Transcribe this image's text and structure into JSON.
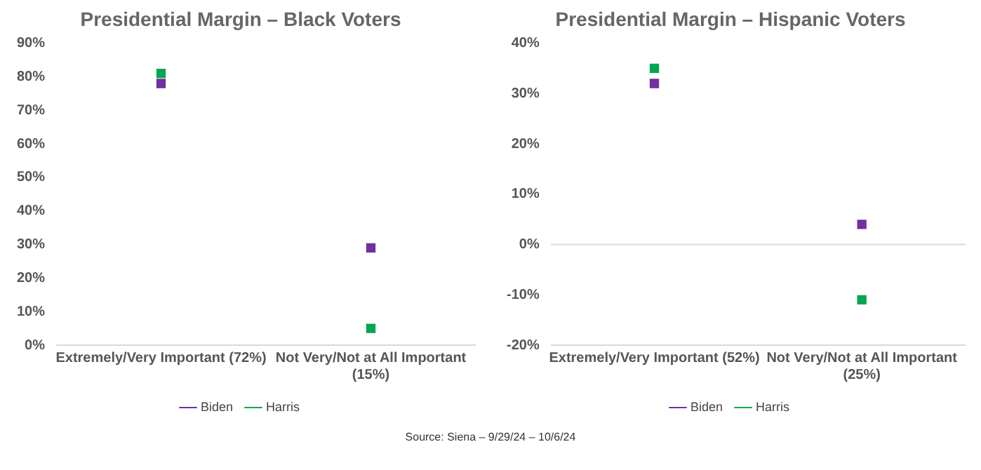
{
  "chart_data": [
    {
      "type": "scatter",
      "title": "Presidential Margin – Black Voters",
      "categories": [
        "Extremely/Very Important (72%)",
        "Not Very/Not at All Important (15%)"
      ],
      "ylim": [
        0,
        90
      ],
      "yticks": [
        {
          "value": 0,
          "label": "0%"
        },
        {
          "value": 10,
          "label": "10%"
        },
        {
          "value": 20,
          "label": "20%"
        },
        {
          "value": 30,
          "label": "30%"
        },
        {
          "value": 40,
          "label": "40%"
        },
        {
          "value": 50,
          "label": "50%"
        },
        {
          "value": 60,
          "label": "60%"
        },
        {
          "value": 70,
          "label": "70%"
        },
        {
          "value": 80,
          "label": "80%"
        },
        {
          "value": 90,
          "label": "90%"
        }
      ],
      "marker": "square",
      "grid": false,
      "legend": "bottom",
      "series": [
        {
          "name": "Biden",
          "color": "#7030a0",
          "values": [
            78,
            29
          ]
        },
        {
          "name": "Harris",
          "color": "#00a651",
          "values": [
            81,
            5
          ]
        }
      ]
    },
    {
      "type": "scatter",
      "title": "Presidential Margin – Hispanic Voters",
      "categories": [
        "Extremely/Very Important (52%)",
        "Not Very/Not at All Important (25%)"
      ],
      "ylim": [
        -20,
        40
      ],
      "yticks": [
        {
          "value": -20,
          "label": "-20%"
        },
        {
          "value": -10,
          "label": "-10%"
        },
        {
          "value": 0,
          "label": "0%"
        },
        {
          "value": 10,
          "label": "10%"
        },
        {
          "value": 20,
          "label": "20%"
        },
        {
          "value": 30,
          "label": "30%"
        },
        {
          "value": 40,
          "label": "40%"
        }
      ],
      "marker": "square",
      "grid": false,
      "legend": "bottom",
      "ref_lines": [
        {
          "axis": "y",
          "value": 0,
          "color": "#d9d9d9"
        }
      ],
      "annotations": [
        "Source: Siena – 9/29/24 – 10/6/24"
      ],
      "series": [
        {
          "name": "Biden",
          "color": "#7030a0",
          "values": [
            32,
            4
          ]
        },
        {
          "name": "Harris",
          "color": "#00a651",
          "values": [
            35,
            -11
          ]
        }
      ]
    }
  ]
}
